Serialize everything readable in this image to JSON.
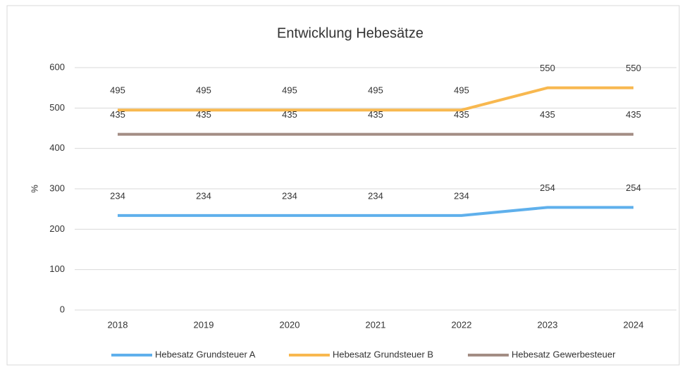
{
  "chart_data": {
    "type": "line",
    "title": "Entwicklung Hebesätze",
    "y_label": "%",
    "categories": [
      "2018",
      "2019",
      "2020",
      "2021",
      "2022",
      "2023",
      "2024"
    ],
    "series": [
      {
        "name": "Hebesatz Grundsteuer A",
        "color": "#5fb0ec",
        "values": [
          234,
          234,
          234,
          234,
          234,
          254,
          254
        ]
      },
      {
        "name": "Hebesatz Grundsteuer B",
        "color": "#f8b84f",
        "values": [
          495,
          495,
          495,
          495,
          495,
          550,
          550
        ]
      },
      {
        "name": "Hebesatz Gewerbesteuer",
        "color": "#a38d84",
        "values": [
          435,
          435,
          435,
          435,
          435,
          435,
          435
        ]
      }
    ],
    "ylim": [
      0,
      600
    ],
    "yticks": [
      0,
      100,
      200,
      300,
      400,
      500,
      600
    ],
    "grid": true,
    "legend": "bottom"
  }
}
